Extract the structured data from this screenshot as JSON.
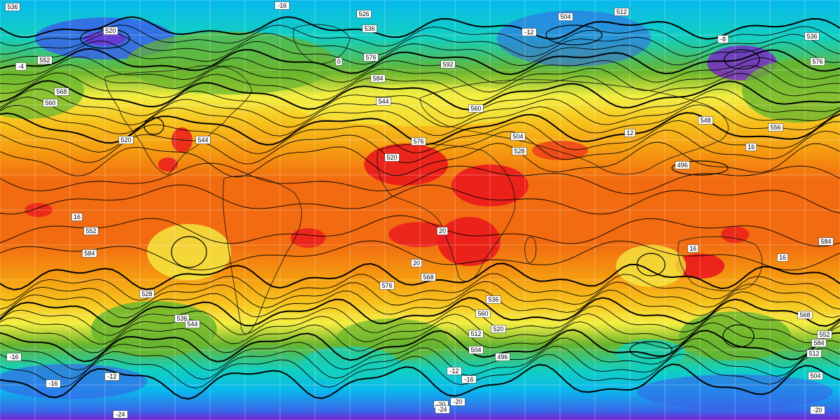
{
  "map": {
    "colors": {
      "band_deep_violet": "#7a22d0",
      "band_blue": "#3a63e8",
      "band_cyan": "#08b9ee",
      "band_teal": "#12d0c0",
      "band_green": "#69b52e",
      "band_yellow_green": "#c3dd37",
      "band_yellow": "#f4ee42",
      "band_gold": "#f7c21d",
      "band_orange": "#f59a10",
      "band_deep_orange": "#f26b10",
      "band_red": "#ea1a1c",
      "contour_line": "#000000",
      "coastline": "#111111",
      "grid_line": "#ffffff"
    },
    "height_labels": [
      "536",
      "526",
      "504",
      "512",
      "536",
      "520",
      "552",
      "568",
      "560",
      "584",
      "576",
      "544",
      "592",
      "560",
      "576",
      "520",
      "504",
      "528",
      "496",
      "548",
      "556",
      "552",
      "584",
      "576",
      "568",
      "560",
      "536",
      "520",
      "512",
      "504",
      "496",
      "520",
      "544",
      "576",
      "536",
      "584",
      "568",
      "512",
      "504",
      "552",
      "584",
      "528",
      "536",
      "544"
    ],
    "temp_labels": [
      "-16",
      "-12",
      "-4",
      "-8",
      "0",
      "-16",
      "16",
      "16",
      "20",
      "20",
      "16",
      "16",
      "12",
      "-12",
      "-16",
      "-20",
      "-24",
      "-20",
      "-24",
      "-16",
      "-20",
      "-12"
    ]
  }
}
